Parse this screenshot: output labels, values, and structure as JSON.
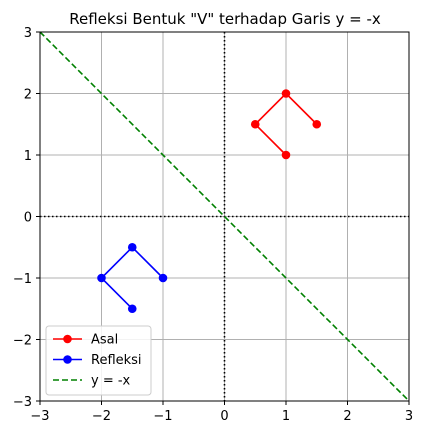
{
  "chart_data": {
    "type": "line",
    "title": "Refleksi Bentuk \"V\" terhadap Garis y = -x",
    "xlabel": "",
    "ylabel": "",
    "xlim": [
      -3,
      3
    ],
    "ylim": [
      -3,
      3
    ],
    "xticks": [
      -3,
      -2,
      -1,
      0,
      1,
      2,
      3
    ],
    "yticks": [
      -3,
      -2,
      -1,
      0,
      1,
      2,
      3
    ],
    "xtick_labels": [
      "−3",
      "−2",
      "−1",
      "0",
      "1",
      "2",
      "3"
    ],
    "ytick_labels": [
      "−3",
      "−2",
      "−1",
      "0",
      "1",
      "2",
      "3"
    ],
    "grid": true,
    "legend_position": "lower-left",
    "series": [
      {
        "name": "Asal",
        "color": "#ff0000",
        "style": "solid",
        "marker": "circle",
        "points": [
          [
            1,
            1
          ],
          [
            0.5,
            1.5
          ],
          [
            1,
            2
          ],
          [
            1.5,
            1.5
          ]
        ]
      },
      {
        "name": "Refleksi",
        "color": "#0000ff",
        "style": "solid",
        "marker": "circle",
        "points": [
          [
            -1,
            -1
          ],
          [
            -1.5,
            -0.5
          ],
          [
            -2,
            -1
          ],
          [
            -1.5,
            -1.5
          ]
        ]
      },
      {
        "name": "y = -x",
        "color": "#008000",
        "style": "dashed",
        "marker": "none",
        "points": [
          [
            -3,
            3
          ],
          [
            3,
            -3
          ]
        ]
      }
    ],
    "reference_lines": {
      "x_axis": {
        "y": 0,
        "color": "#000000",
        "style": "dotted"
      },
      "y_axis": {
        "x": 0,
        "color": "#000000",
        "style": "dotted"
      }
    }
  }
}
